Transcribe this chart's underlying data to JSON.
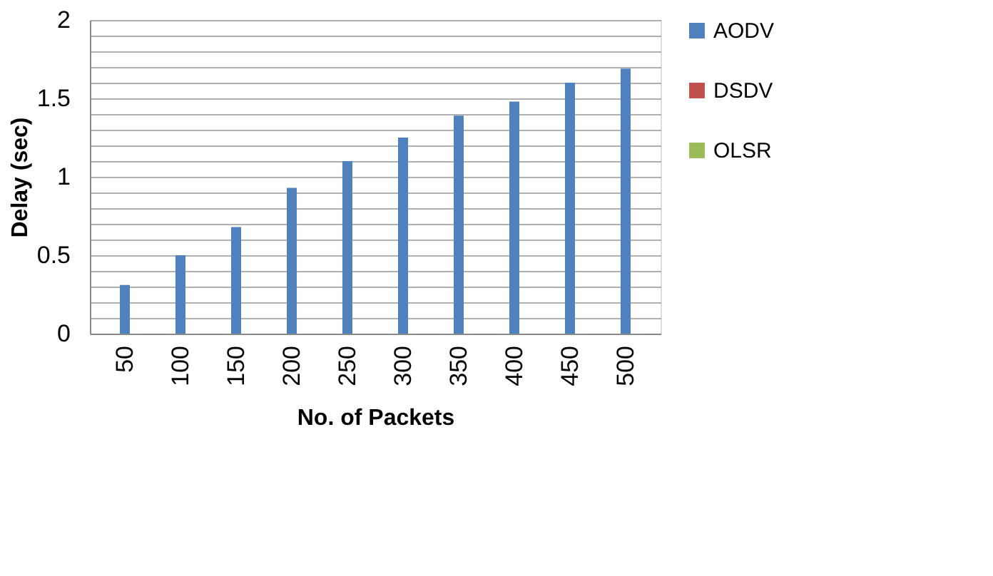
{
  "chart_data": {
    "type": "bar",
    "xlabel": "No. of Packets",
    "ylabel": "Delay (sec)",
    "categories": [
      "50",
      "100",
      "150",
      "200",
      "250",
      "300",
      "350",
      "400",
      "450",
      "500"
    ],
    "series": [
      {
        "name": "AODV",
        "color": "#4f81bd",
        "values": [
          0.31,
          0.5,
          0.68,
          0.93,
          1.1,
          1.25,
          1.39,
          1.48,
          1.6,
          1.69
        ]
      },
      {
        "name": "DSDV",
        "color": "#c0504d",
        "values": [
          null,
          null,
          null,
          null,
          null,
          null,
          null,
          null,
          null,
          null
        ]
      },
      {
        "name": "OLSR",
        "color": "#9bbb59",
        "values": [
          null,
          null,
          null,
          null,
          null,
          null,
          null,
          null,
          null,
          null
        ]
      }
    ],
    "ylim": [
      0,
      2
    ],
    "yticks": [
      0,
      {
        "value": 0.1,
        "label": null
      },
      {
        "value": 0.2,
        "label": null
      },
      {
        "value": 0.3,
        "label": null
      },
      {
        "value": 0.4,
        "label": null
      },
      0.5,
      {
        "value": 0.6,
        "label": null
      },
      {
        "value": 0.7,
        "label": null
      },
      {
        "value": 0.8,
        "label": null
      },
      {
        "value": 0.9,
        "label": null
      },
      1,
      {
        "value": 1.1,
        "label": null
      },
      {
        "value": 1.2,
        "label": null
      },
      {
        "value": 1.3,
        "label": null
      },
      {
        "value": 1.4,
        "label": null
      },
      1.5,
      {
        "value": 1.6,
        "label": null
      },
      {
        "value": 1.7,
        "label": null
      },
      {
        "value": 1.8,
        "label": null
      },
      {
        "value": 1.9,
        "label": null
      },
      2
    ],
    "grid": "y",
    "legend": "right"
  }
}
